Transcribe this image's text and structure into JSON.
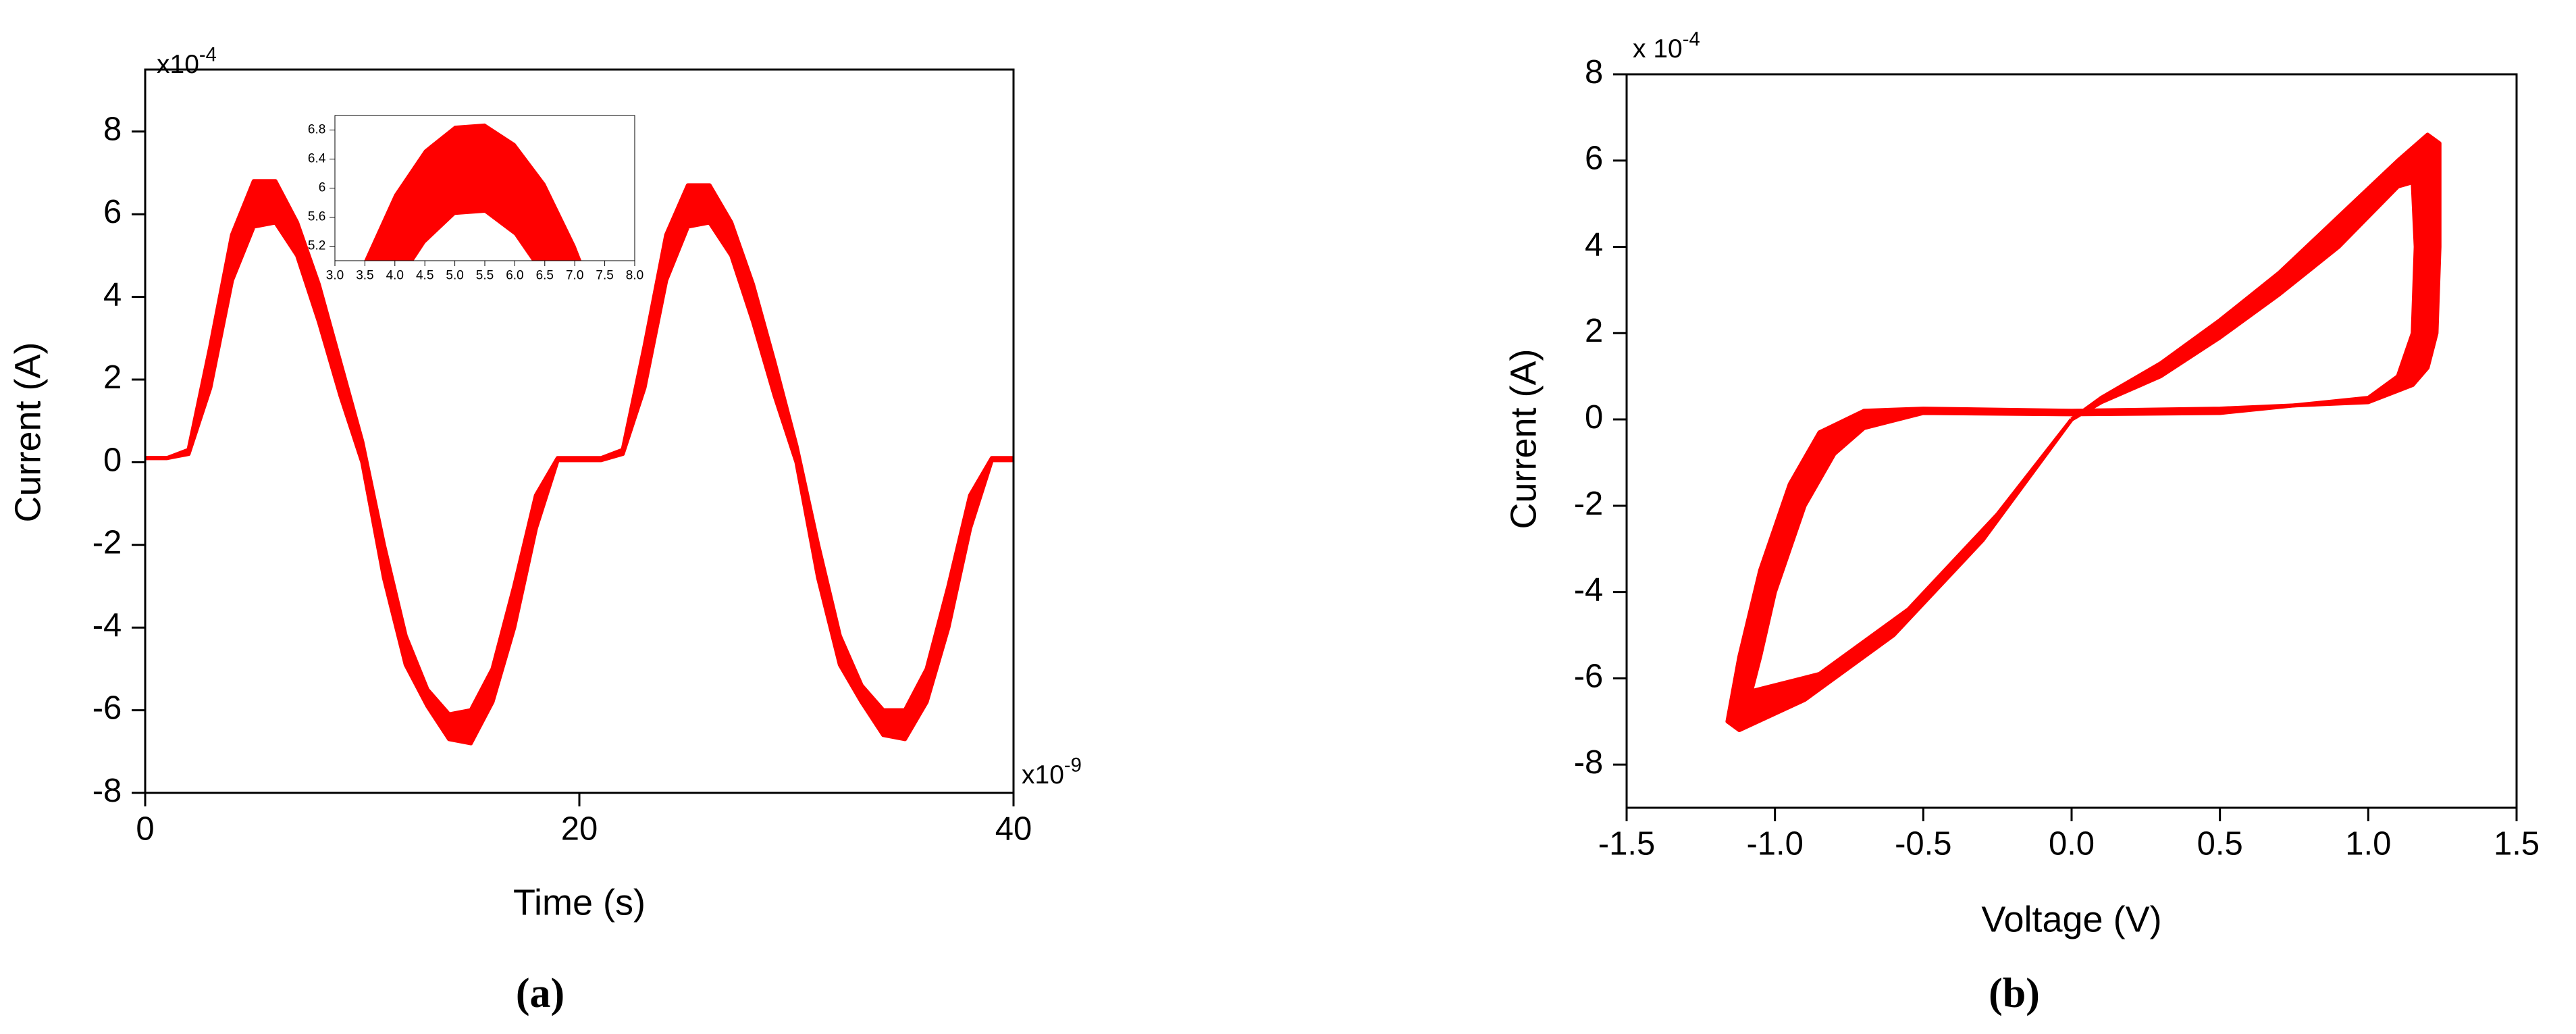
{
  "chart_data": [
    {
      "type": "line",
      "panel_label": "(a)",
      "xlabel": "Time (s)",
      "ylabel": "Current (A)",
      "x_multiplier": {
        "base": "x10",
        "exponent": "-9"
      },
      "y_multiplier": {
        "base": "x10",
        "exponent": "-4"
      },
      "xlim": [
        0,
        40
      ],
      "ylim": [
        -8,
        9.5
      ],
      "xticks": [
        0,
        20,
        40
      ],
      "yticks": [
        -8,
        -6,
        -4,
        -2,
        0,
        2,
        4,
        6,
        8
      ],
      "fill": true,
      "color": "#ff0000",
      "x": [
        0,
        1,
        2,
        3,
        4,
        5,
        6,
        7,
        8,
        9,
        10,
        11,
        12,
        13,
        14,
        15,
        16,
        17,
        18,
        19,
        20,
        21,
        22,
        23,
        24,
        25,
        26,
        27,
        28,
        29,
        30,
        31,
        32,
        33,
        34,
        35,
        36,
        37,
        38,
        39,
        40
      ],
      "series": [
        {
          "color": "#ff0000",
          "values": [
            0.1,
            0.1,
            0.3,
            2.8,
            5.5,
            6.8,
            6.8,
            5.8,
            4.3,
            2.4,
            0.5,
            -2.0,
            -4.2,
            -5.5,
            -6.1,
            -6.0,
            -5.0,
            -3.0,
            -0.8,
            0.1,
            0.1,
            0.1,
            0.3,
            2.8,
            5.5,
            6.7,
            6.7,
            5.8,
            4.3,
            2.4,
            0.4,
            -2.0,
            -4.2,
            -5.4,
            -6.0,
            -6.0,
            -5.0,
            -3.0,
            -0.8,
            0.1,
            0.1
          ]
        },
        {
          "color": "#ff0000",
          "values": [
            0.1,
            0.1,
            0.2,
            1.8,
            4.4,
            5.7,
            5.8,
            5.0,
            3.4,
            1.6,
            0.0,
            -2.8,
            -4.9,
            -5.9,
            -6.7,
            -6.8,
            -5.8,
            -4.0,
            -1.6,
            0.05,
            0.05,
            0.05,
            0.2,
            1.8,
            4.4,
            5.7,
            5.8,
            5.0,
            3.4,
            1.6,
            0.0,
            -2.8,
            -4.9,
            -5.8,
            -6.6,
            -6.7,
            -5.8,
            -4.0,
            -1.6,
            0.05,
            0.05
          ]
        }
      ]
    },
    {
      "type": "line",
      "panel_label": "(b)",
      "xlabel": "Voltage (V)",
      "ylabel": "Current (A)",
      "y_multiplier": {
        "base": "x 10",
        "exponent": "-4"
      },
      "xlim": [
        -1.5,
        1.5
      ],
      "ylim": [
        -9,
        8
      ],
      "xticks": [
        -1.5,
        {
          "value": -1,
          "label": "-1.0"
        },
        -0.5,
        {
          "value": 0,
          "label": "0.0"
        },
        0.5,
        {
          "value": 1,
          "label": "1.0"
        },
        1.5
      ],
      "yticks": [
        -8,
        -6,
        -4,
        -2,
        0,
        2,
        4,
        6,
        8
      ],
      "fill": true,
      "color": "#ff0000",
      "series": [
        {
          "color": "#ff0000",
          "x": [
            0,
            0.1,
            0.3,
            0.5,
            0.7,
            0.9,
            1.1,
            1.2,
            1.24,
            1.24,
            1.23,
            1.2,
            1.15,
            1.0,
            0.5,
            0,
            -0.5,
            -0.7,
            -0.85,
            -0.95,
            -1.05,
            -1.12,
            -1.16,
            -1.12,
            -0.9,
            -0.6,
            -0.3,
            0
          ],
          "values": [
            0,
            0.5,
            1.3,
            2.3,
            3.4,
            4.7,
            6.0,
            6.6,
            6.4,
            4.0,
            2.0,
            1.2,
            0.8,
            0.4,
            0.25,
            0.2,
            0.25,
            0.2,
            -0.3,
            -1.5,
            -3.5,
            -5.5,
            -7.0,
            -7.2,
            -6.5,
            -5.0,
            -2.8,
            0
          ]
        },
        {
          "color": "#ff0000",
          "x": [
            0,
            0.1,
            0.3,
            0.5,
            0.7,
            0.9,
            1.1,
            1.15,
            1.16,
            1.15,
            1.1,
            1.0,
            0.5,
            0,
            -0.5,
            -0.7,
            -0.8,
            -0.9,
            -1.0,
            -1.05,
            -1.08,
            -0.85,
            -0.55,
            -0.25,
            0
          ],
          "values": [
            0,
            0.4,
            1.0,
            1.9,
            2.9,
            4.0,
            5.4,
            5.5,
            4.0,
            2.0,
            1.0,
            0.5,
            0.15,
            0.12,
            0.15,
            -0.2,
            -0.8,
            -2.0,
            -4.0,
            -5.5,
            -6.3,
            -5.9,
            -4.4,
            -2.2,
            0
          ]
        }
      ]
    },
    {
      "type": "line",
      "xlim": [
        3,
        8
      ],
      "ylim": [
        5,
        7
      ],
      "xticks": [
        {
          "value": 3,
          "label": "3.0"
        },
        3.5,
        {
          "value": 4,
          "label": "4.0"
        },
        4.5,
        {
          "value": 5,
          "label": "5.0"
        },
        5.5,
        {
          "value": 6,
          "label": "6.0"
        },
        6.5,
        {
          "value": 7,
          "label": "7.0"
        },
        7.5,
        {
          "value": 8,
          "label": "8.0"
        }
      ],
      "yticks": [
        5.2,
        5.6,
        6.0,
        6.4,
        6.8
      ],
      "fill": true,
      "color": "#ff0000",
      "series": [
        {
          "color": "#ff0000",
          "x": [
            3.5,
            4.0,
            4.5,
            5.0,
            5.5,
            6.0,
            6.5,
            7.0,
            7.1
          ],
          "values": [
            5.0,
            5.91,
            6.52,
            6.85,
            6.88,
            6.61,
            6.06,
            5.21,
            5.0
          ]
        },
        {
          "color": "#ff0000",
          "x": [
            4.3,
            4.5,
            5.0,
            5.5,
            6.0,
            6.3
          ],
          "values": [
            5.0,
            5.25,
            5.64,
            5.67,
            5.36,
            5.0
          ]
        }
      ]
    }
  ]
}
